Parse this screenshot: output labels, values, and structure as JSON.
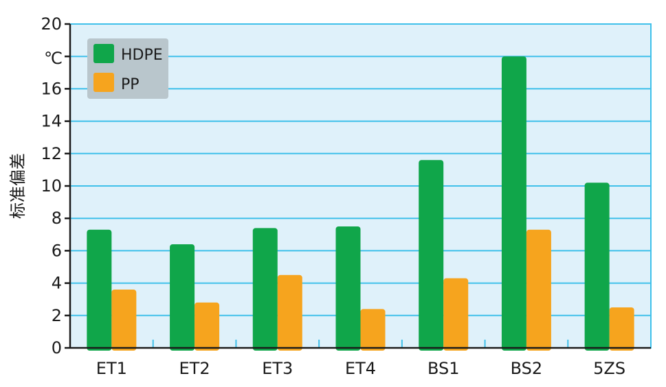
{
  "chart_data": {
    "type": "bar",
    "title": "",
    "xlabel": "",
    "ylabel": "标准偏差",
    "unit_label": "℃",
    "categories": [
      "ET1",
      "ET2",
      "ET3",
      "ET4",
      "BS1",
      "BS2",
      "5ZS"
    ],
    "series": [
      {
        "name": "HDPE",
        "color": "#10a64a",
        "values": [
          7.3,
          6.4,
          7.4,
          7.5,
          11.6,
          18.0,
          10.2
        ]
      },
      {
        "name": "PP",
        "color": "#f6a41e",
        "values": [
          3.6,
          2.8,
          4.5,
          2.4,
          4.3,
          7.3,
          2.5
        ]
      }
    ],
    "ylim": [
      0,
      20
    ],
    "yticks": [
      0,
      2,
      4,
      6,
      8,
      10,
      12,
      14,
      16,
      18,
      20
    ],
    "grid": true,
    "legend_position": "top-left",
    "plot_background": "#dff1fa",
    "grid_color": "#3fc0ea"
  }
}
